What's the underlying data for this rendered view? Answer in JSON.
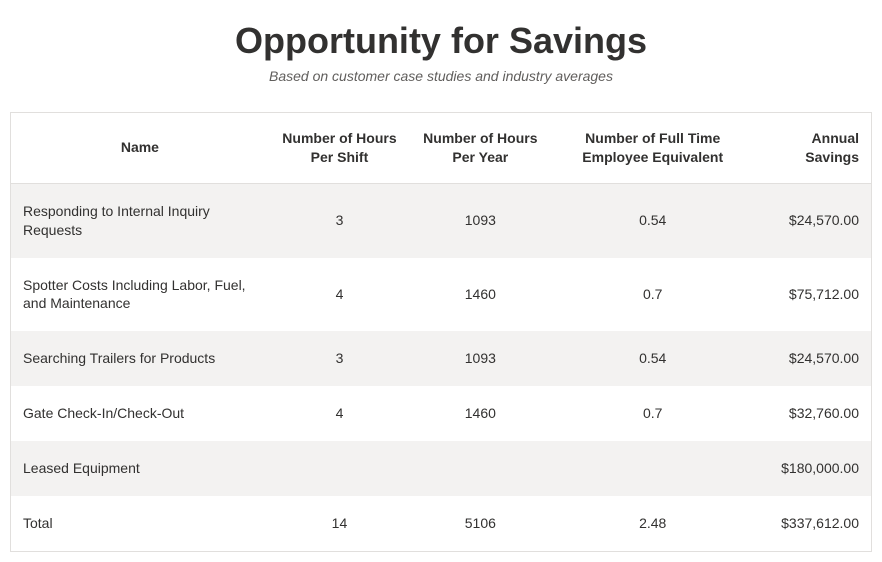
{
  "title": "Opportunity for Savings",
  "subtitle": "Based on customer case studies and industry averages",
  "table": {
    "columns": [
      "Name",
      "Number of Hours Per Shift",
      "Number of Hours Per Year",
      "Number of Full Time Employee Equivalent",
      "Annual Savings"
    ],
    "rows": [
      {
        "name": "Responding to Internal Inquiry Requests",
        "hours_shift": "3",
        "hours_year": "1093",
        "fte": "0.54",
        "annual": "$24,570.00"
      },
      {
        "name": "Spotter Costs Including Labor, Fuel, and Maintenance",
        "hours_shift": "4",
        "hours_year": "1460",
        "fte": "0.7",
        "annual": "$75,712.00"
      },
      {
        "name": "Searching Trailers for Products",
        "hours_shift": "3",
        "hours_year": "1093",
        "fte": "0.54",
        "annual": "$24,570.00"
      },
      {
        "name": "Gate Check-In/Check-Out",
        "hours_shift": "4",
        "hours_year": "1460",
        "fte": "0.7",
        "annual": "$32,760.00"
      },
      {
        "name": "Leased Equipment",
        "hours_shift": "",
        "hours_year": "",
        "fte": "",
        "annual": "$180,000.00"
      },
      {
        "name": "Total",
        "hours_shift": "14",
        "hours_year": "5106",
        "fte": "2.48",
        "annual": "$337,612.00"
      }
    ]
  },
  "styling": {
    "type": "table",
    "title_fontsize": 36,
    "title_weight": 600,
    "title_color": "#323130",
    "subtitle_fontsize": 14,
    "subtitle_color": "#605e5c",
    "subtitle_style": "italic",
    "cell_fontsize": 14,
    "text_color": "#323130",
    "border_color": "#e1dfdd",
    "row_odd_bg": "#f3f2f1",
    "row_even_bg": "#ffffff",
    "header_bg": "#ffffff",
    "column_align": [
      "left",
      "center",
      "center",
      "center",
      "right"
    ],
    "column_widths_pct": [
      30,
      16,
      16,
      22,
      16
    ]
  }
}
